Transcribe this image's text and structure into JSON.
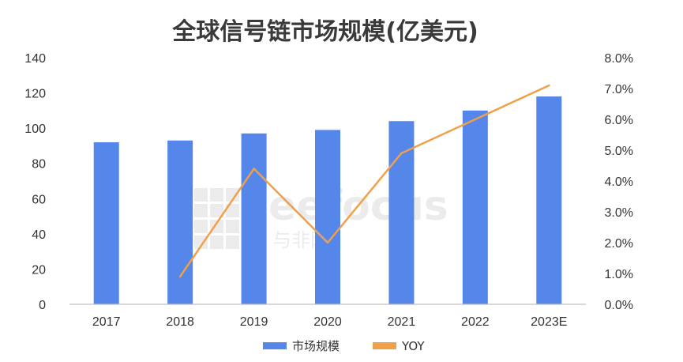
{
  "chart_data": {
    "type": "bar",
    "title": "全球信号链市场规模(亿美元)",
    "categories": [
      "2017",
      "2018",
      "2019",
      "2020",
      "2021",
      "2022",
      "2023E"
    ],
    "series": [
      {
        "name": "市场规模",
        "type": "bar",
        "axis": "left",
        "values": [
          92,
          93,
          97,
          99,
          104,
          110,
          118
        ]
      },
      {
        "name": "YOY",
        "type": "line",
        "axis": "right",
        "values": [
          null,
          0.009,
          0.044,
          0.02,
          0.049,
          0.06,
          0.071
        ]
      }
    ],
    "y_left": {
      "min": 0,
      "max": 140,
      "step": 20,
      "ticks": [
        "0",
        "20",
        "40",
        "60",
        "80",
        "100",
        "120",
        "140"
      ]
    },
    "y_right": {
      "min": 0,
      "max": 0.08,
      "step": 0.01,
      "ticks": [
        "0.0%",
        "1.0%",
        "2.0%",
        "3.0%",
        "4.0%",
        "5.0%",
        "6.0%",
        "7.0%",
        "8.0%"
      ]
    },
    "grid": false,
    "legend_position": "bottom",
    "colors": {
      "bar": "#5586ea",
      "line": "#f0a048",
      "axis": "#bfbfbf",
      "title": "#3a3a3a"
    }
  },
  "watermark": {
    "brand": "eefocus",
    "sub": "与非网"
  }
}
